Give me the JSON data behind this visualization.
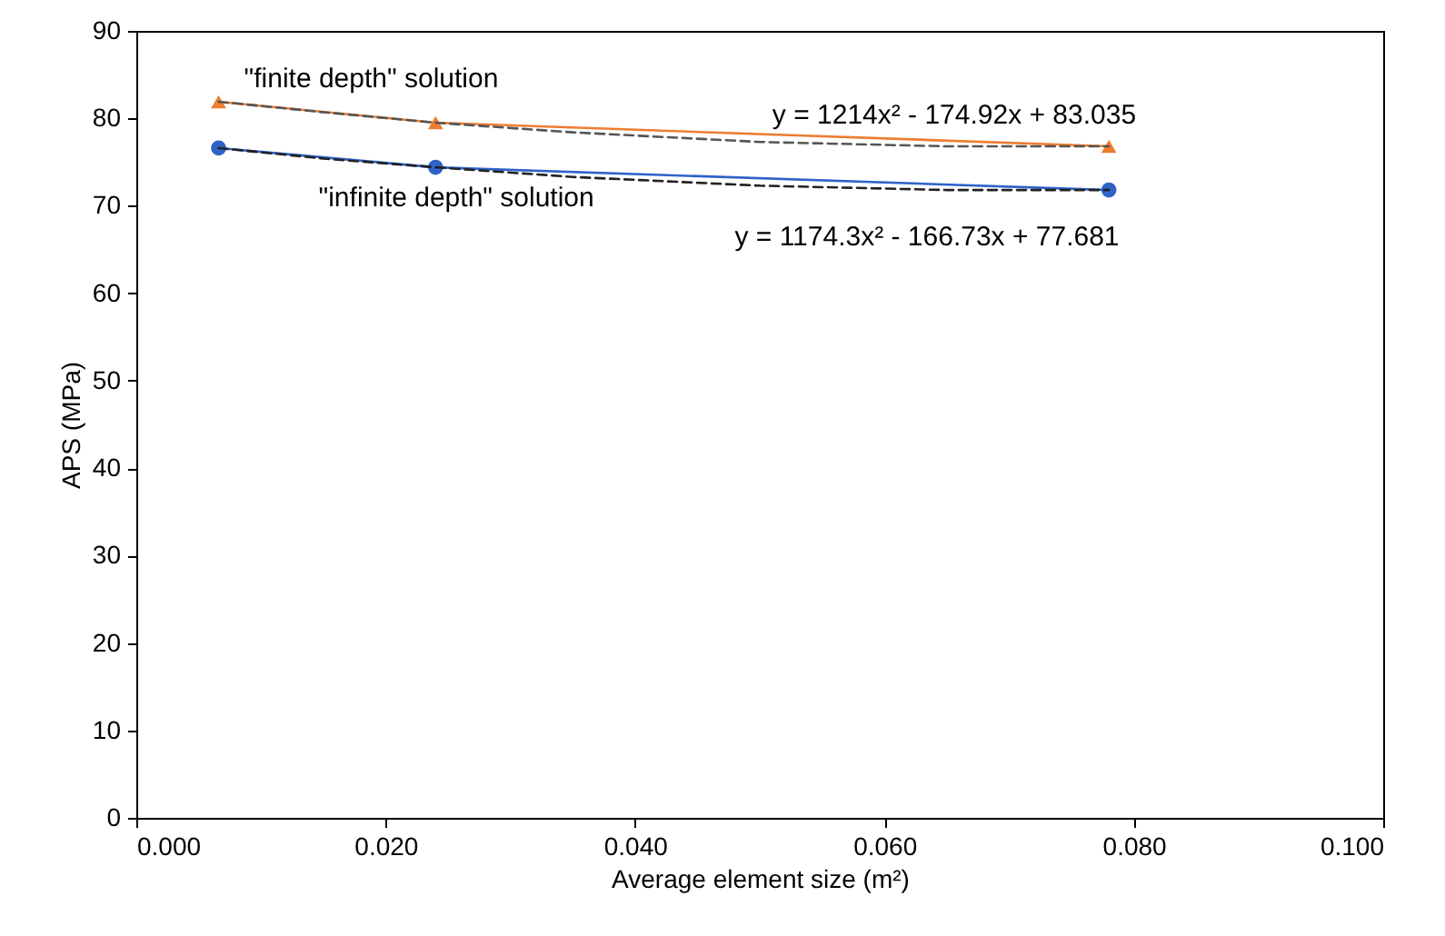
{
  "chart_data": {
    "type": "line",
    "xlabel": "Average element size (m²)",
    "ylabel": "APS (MPa)",
    "xlim": [
      0,
      0.1
    ],
    "xticks": [
      {
        "value": 0,
        "label": "0.000"
      },
      {
        "value": 0.02,
        "label": "0.020"
      },
      {
        "value": 0.04,
        "label": "0.040"
      },
      {
        "value": 0.06,
        "label": "0.060"
      },
      {
        "value": 0.08,
        "label": "0.080"
      },
      {
        "value": 0.1,
        "label": "0.100"
      }
    ],
    "ylim": [
      0,
      90
    ],
    "yticks": [
      0,
      10,
      20,
      30,
      40,
      50,
      60,
      70,
      80,
      90
    ],
    "grid": false,
    "series": [
      {
        "name": "\"finite depth\" solution",
        "color": "#ed7d31",
        "marker": "triangle",
        "x": [
          0.0066,
          0.024,
          0.078
        ],
        "values": [
          81.9,
          79.5,
          76.8
        ]
      },
      {
        "name": "\"infinite depth\" solution",
        "color": "#2e62c8",
        "marker": "circle",
        "x": [
          0.0066,
          0.024,
          0.078
        ],
        "values": [
          76.6,
          74.4,
          71.8
        ]
      },
      {
        "type": "line",
        "color": "#555555",
        "line_style": "dashed",
        "marker": "none",
        "x": [
          0.0066,
          0.015,
          0.024,
          0.035,
          0.05,
          0.065,
          0.078
        ],
        "values": [
          81.9,
          80.7,
          79.5,
          78.4,
          77.3,
          76.8,
          76.8
        ]
      },
      {
        "type": "line",
        "color": "#222222",
        "line_style": "dashed",
        "marker": "none",
        "x": [
          0.0066,
          0.015,
          0.024,
          0.035,
          0.05,
          0.065,
          0.078
        ],
        "values": [
          76.6,
          75.4,
          74.4,
          73.3,
          72.3,
          71.8,
          71.8
        ]
      }
    ],
    "annotations": [
      "y = 1214x² - 174.92x + 83.035",
      "y = 1174.3x² - 166.73x + 77.681"
    ]
  }
}
